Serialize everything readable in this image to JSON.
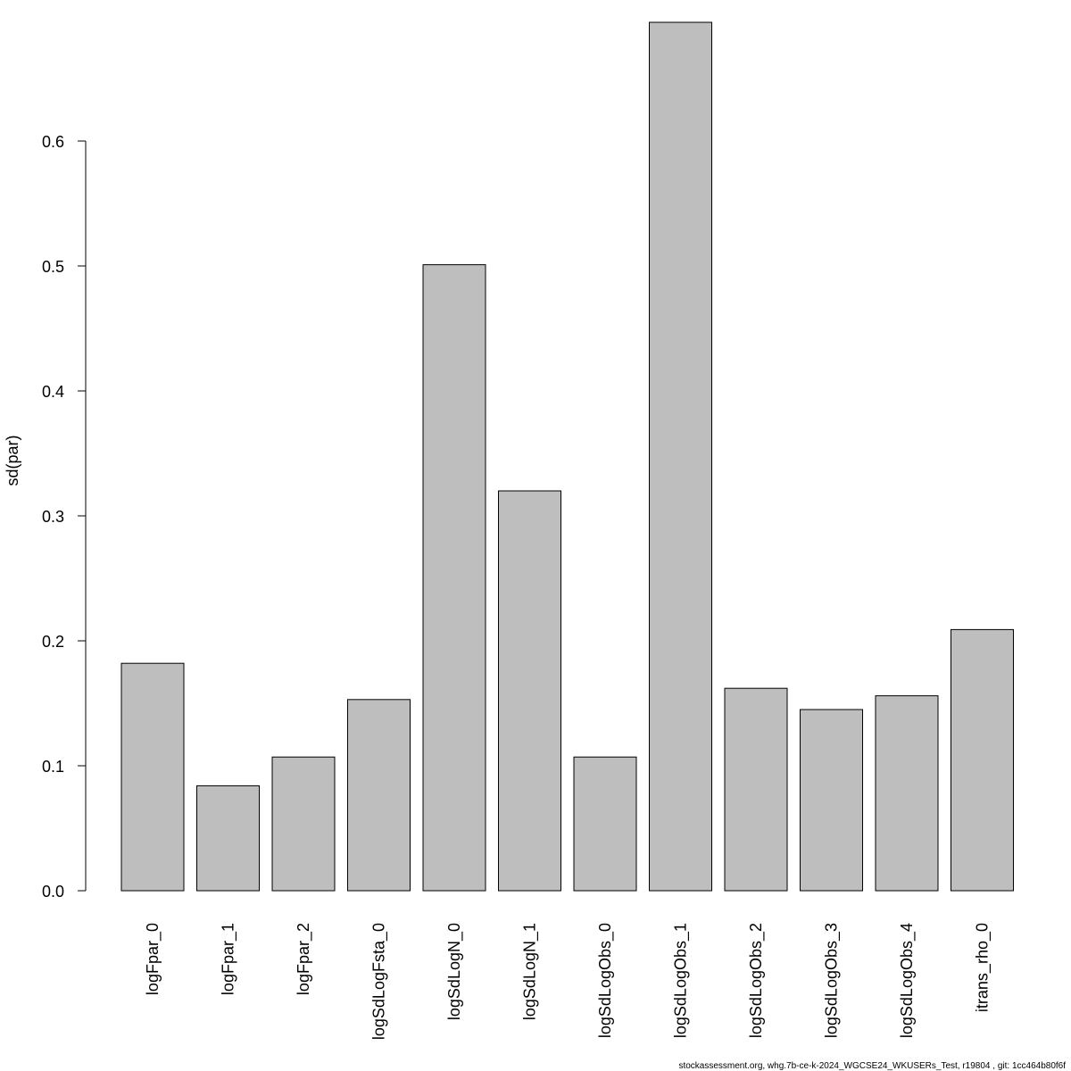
{
  "chart_data": {
    "type": "bar",
    "categories": [
      "logFpar_0",
      "logFpar_1",
      "logFpar_2",
      "logSdLogFsta_0",
      "logSdLogN_0",
      "logSdLogN_1",
      "logSdLogObs_0",
      "logSdLogObs_1",
      "logSdLogObs_2",
      "logSdLogObs_3",
      "logSdLogObs_4",
      "itrans_rho_0"
    ],
    "values": [
      0.182,
      0.084,
      0.107,
      0.153,
      0.501,
      0.32,
      0.107,
      0.695,
      0.162,
      0.145,
      0.156,
      0.209
    ],
    "title": "",
    "xlabel": "",
    "ylabel": "sd(par)",
    "ylim": [
      0,
      0.7
    ],
    "y_ticks": [
      0.0,
      0.1,
      0.2,
      0.3,
      0.4,
      0.5,
      0.6
    ],
    "y_tick_labels": [
      "0.0",
      "0.1",
      "0.2",
      "0.3",
      "0.4",
      "0.5",
      "0.6"
    ],
    "grid": false,
    "legend": "none",
    "bar_fill": "#bebebe",
    "bar_stroke": "#000000"
  },
  "footer": {
    "text": "stockassessment.org, whg.7b-ce-k-2024_WGCSE24_WKUSERs_Test, r19804 , git: 1cc464b80f6f"
  }
}
